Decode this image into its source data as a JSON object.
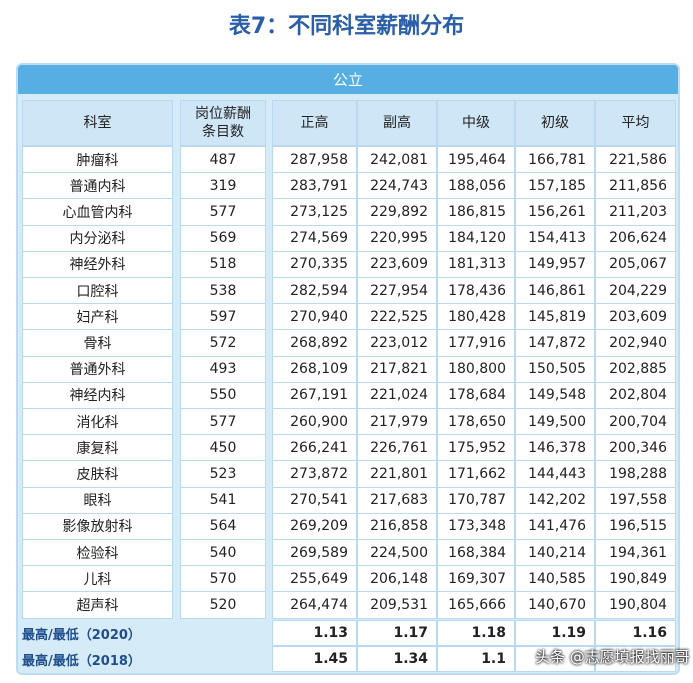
{
  "title": "表7：不同科室薪酬分布",
  "table": {
    "group": "公立",
    "headers": [
      "科室",
      "岗位薪酬条目数",
      "正高",
      "副高",
      "中级",
      "初级",
      "平均"
    ],
    "rows": [
      [
        "肿瘤科",
        "487",
        "287,958",
        "242,081",
        "195,464",
        "166,781",
        "221,586"
      ],
      [
        "普通内科",
        "319",
        "283,791",
        "224,743",
        "188,056",
        "157,185",
        "211,856"
      ],
      [
        "心血管内科",
        "577",
        "273,125",
        "229,892",
        "186,815",
        "156,261",
        "211,203"
      ],
      [
        "内分泌科",
        "569",
        "274,569",
        "220,995",
        "184,120",
        "154,413",
        "206,624"
      ],
      [
        "神经外科",
        "518",
        "270,335",
        "223,609",
        "181,313",
        "149,957",
        "205,067"
      ],
      [
        "口腔科",
        "538",
        "282,594",
        "227,954",
        "178,436",
        "146,861",
        "204,229"
      ],
      [
        "妇产科",
        "597",
        "270,940",
        "222,525",
        "180,428",
        "145,819",
        "203,609"
      ],
      [
        "骨科",
        "572",
        "268,892",
        "223,012",
        "177,916",
        "147,872",
        "202,940"
      ],
      [
        "普通外科",
        "493",
        "268,109",
        "217,821",
        "180,800",
        "150,505",
        "202,885"
      ],
      [
        "神经内科",
        "550",
        "267,191",
        "221,024",
        "178,684",
        "149,548",
        "202,804"
      ],
      [
        "消化科",
        "577",
        "260,900",
        "217,979",
        "178,650",
        "149,500",
        "200,704"
      ],
      [
        "康复科",
        "450",
        "266,241",
        "226,761",
        "175,952",
        "146,378",
        "200,346"
      ],
      [
        "皮肤科",
        "523",
        "273,872",
        "221,801",
        "171,662",
        "144,443",
        "198,288"
      ],
      [
        "眼科",
        "541",
        "270,541",
        "217,683",
        "170,787",
        "142,202",
        "197,558"
      ],
      [
        "影像放射科",
        "564",
        "269,209",
        "216,858",
        "173,348",
        "141,476",
        "196,515"
      ],
      [
        "检验科",
        "540",
        "269,589",
        "224,500",
        "168,384",
        "140,214",
        "194,361"
      ],
      [
        "儿科",
        "570",
        "255,649",
        "206,148",
        "169,307",
        "140,585",
        "190,849"
      ],
      [
        "超声科",
        "520",
        "264,474",
        "209,531",
        "165,666",
        "140,670",
        "190,804"
      ]
    ],
    "footer": [
      {
        "label": "最高/最低（2020）",
        "values": [
          "1.13",
          "1.17",
          "1.18",
          "1.19",
          "1.16"
        ]
      },
      {
        "label": "最高/最低（2018）",
        "values": [
          "1.45",
          "1.34",
          "1.1"
        ]
      }
    ]
  },
  "watermark": "头条 @志愿填报找丽哥"
}
